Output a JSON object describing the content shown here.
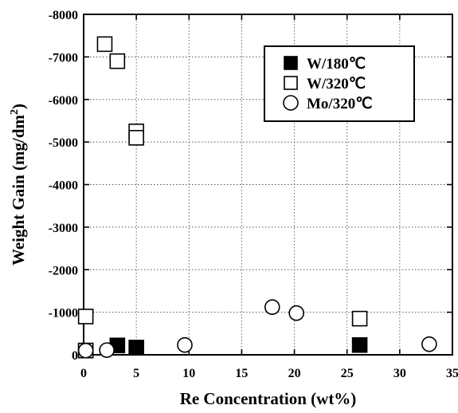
{
  "chart_data": {
    "type": "scatter",
    "title": "",
    "xlabel": "Re Concentration (wt%)",
    "ylabel_main": "Weight Gain (mg/dm",
    "ylabel_sup": "2",
    "ylabel_close": ")",
    "xlim": [
      0,
      35
    ],
    "ylim": [
      0,
      -8000
    ],
    "x_ticks": [
      0,
      5,
      10,
      15,
      20,
      25,
      30,
      35
    ],
    "y_ticks": [
      0,
      -1000,
      -2000,
      -3000,
      -4000,
      -5000,
      -6000,
      -7000,
      -8000
    ],
    "x_tick_labels": [
      "0",
      "5",
      "10",
      "15",
      "20",
      "25",
      "30",
      "35"
    ],
    "y_tick_labels": [
      "0",
      "-1000",
      "-2000",
      "-3000",
      "-4000",
      "-5000",
      "-6000",
      "-7000",
      "-8000"
    ],
    "grid": true,
    "legend_position": "top-right",
    "series": [
      {
        "name": "W/180℃",
        "marker": "filled-square",
        "points": [
          [
            0.2,
            -100
          ],
          [
            3.2,
            -220
          ],
          [
            5.0,
            -170
          ],
          [
            26.2,
            -230
          ]
        ]
      },
      {
        "name": "W/320℃",
        "marker": "open-square",
        "points": [
          [
            0.2,
            -900
          ],
          [
            0.2,
            -100
          ],
          [
            2.0,
            -7300
          ],
          [
            3.2,
            -6900
          ],
          [
            5.0,
            -5250
          ],
          [
            5.0,
            -5100
          ],
          [
            26.2,
            -850
          ]
        ]
      },
      {
        "name": "Mo/320℃",
        "marker": "open-circle",
        "points": [
          [
            0.2,
            -100
          ],
          [
            2.2,
            -110
          ],
          [
            9.6,
            -230
          ],
          [
            17.9,
            -1120
          ],
          [
            20.2,
            -980
          ],
          [
            32.8,
            -250
          ]
        ]
      }
    ]
  }
}
